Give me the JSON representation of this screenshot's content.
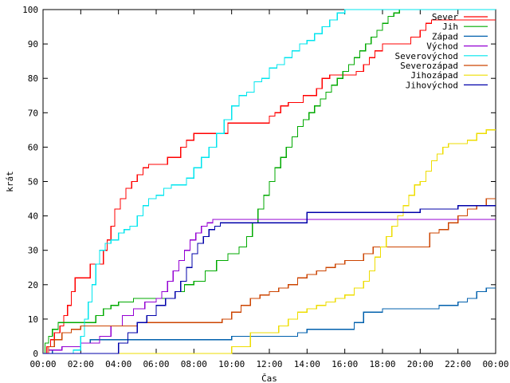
{
  "chart_data": {
    "type": "line",
    "xlabel": "Čas",
    "ylabel": "krát",
    "xlim": [
      0,
      24
    ],
    "ylim": [
      0,
      100
    ],
    "x_ticks": [
      "00:00",
      "02:00",
      "04:00",
      "06:00",
      "08:00",
      "10:00",
      "12:00",
      "14:00",
      "16:00",
      "18:00",
      "20:00",
      "22:00",
      "00:00"
    ],
    "y_ticks": [
      "0",
      "10",
      "20",
      "30",
      "40",
      "50",
      "60",
      "70",
      "80",
      "90",
      "100"
    ],
    "grid": false,
    "legend_position": "top-right",
    "series": [
      {
        "name": "Sever",
        "color": "#ff0000",
        "x": [
          0,
          0.2,
          0.4,
          0.6,
          0.9,
          1.1,
          1.3,
          1.5,
          1.7,
          2.5,
          2.8,
          3.0,
          3.2,
          3.4,
          3.6,
          3.8,
          4.1,
          4.4,
          4.7,
          5.0,
          5.3,
          5.6,
          5.9,
          6.2,
          6.6,
          7.0,
          7.3,
          7.6,
          8.0,
          8.4,
          9.0,
          9.8,
          10.2,
          10.5,
          10.8,
          12.0,
          12.3,
          12.6,
          13.0,
          13.8,
          14.2,
          14.5,
          14.8,
          15.2,
          15.6,
          16.0,
          16.3,
          16.6,
          17.0,
          17.3,
          17.6,
          18.0,
          19.5,
          20.0,
          20.3,
          20.6,
          21.0,
          21.5,
          22.0,
          22.5,
          23.0
        ],
        "y": [
          0,
          2,
          4,
          6,
          8,
          11,
          14,
          18,
          22,
          26,
          26,
          26,
          30,
          33,
          37,
          42,
          45,
          48,
          50,
          52,
          54,
          55,
          55,
          55,
          57,
          57,
          60,
          62,
          64,
          64,
          64,
          67,
          67,
          67,
          67,
          69,
          70,
          72,
          73,
          75,
          75,
          77,
          80,
          81,
          81,
          81,
          81,
          82,
          84,
          86,
          88,
          90,
          92,
          94,
          96,
          97,
          97,
          97,
          97,
          97,
          97
        ]
      },
      {
        "name": "Jih",
        "color": "#00aa00",
        "x": [
          0,
          0.1,
          0.3,
          0.5,
          0.8,
          1.2,
          2.0,
          2.8,
          3.2,
          3.6,
          4.0,
          4.4,
          4.8,
          5.2,
          6.0,
          7.0,
          7.5,
          8.0,
          8.6,
          9.2,
          9.8,
          10.4,
          10.8,
          11.1,
          11.4,
          11.7,
          12.0,
          12.3,
          12.6,
          12.9,
          13.2,
          13.5,
          13.8,
          14.1,
          14.4,
          14.7,
          15.0,
          15.3,
          15.6,
          15.9,
          16.2,
          16.5,
          16.8,
          17.1,
          17.4,
          17.7,
          18.0,
          18.3,
          18.6,
          18.9,
          19.2
        ],
        "y": [
          0,
          3,
          5,
          7,
          9,
          9,
          9,
          11,
          13,
          14,
          15,
          15,
          16,
          16,
          16,
          18,
          20,
          21,
          24,
          27,
          29,
          31,
          34,
          38,
          42,
          46,
          50,
          54,
          57,
          60,
          63,
          66,
          68,
          70,
          72,
          74,
          76,
          78,
          80,
          82,
          84,
          86,
          88,
          90,
          92,
          94,
          96,
          98,
          99,
          100,
          100
        ]
      },
      {
        "name": "Západ",
        "color": "#0060ad",
        "x": [
          0,
          0.5,
          1.0,
          1.5,
          2.0,
          2.5,
          3.0,
          6.0,
          8.0,
          10.0,
          12.0,
          13.5,
          14.0,
          15.0,
          16.0,
          16.5,
          17.0,
          18.0,
          19.0,
          20.0,
          21.0,
          22.0,
          22.5,
          23.0,
          23.5
        ],
        "y": [
          0,
          1,
          2,
          2,
          3,
          4,
          4,
          4,
          4,
          5,
          5,
          6,
          7,
          7,
          7,
          9,
          12,
          13,
          13,
          13,
          14,
          15,
          16,
          18,
          19
        ]
      },
      {
        "name": "Východ",
        "color": "#9400d3",
        "x": [
          0,
          0.3,
          1.0,
          2.0,
          3.0,
          3.6,
          4.2,
          4.8,
          5.4,
          6.0,
          6.3,
          6.6,
          6.9,
          7.2,
          7.5,
          7.8,
          8.1,
          8.4,
          8.7,
          9.0,
          9.5,
          10.0,
          12.0,
          14.0,
          16.0,
          18.0,
          20.0,
          22.0,
          23.5
        ],
        "y": [
          0,
          1,
          2,
          3,
          5,
          8,
          11,
          13,
          15,
          16,
          18,
          21,
          24,
          27,
          30,
          33,
          35,
          37,
          38,
          39,
          39,
          39,
          39,
          39,
          39,
          39,
          39,
          39,
          39
        ]
      },
      {
        "name": "Severovýchod",
        "color": "#00e5ee",
        "x": [
          0,
          0.5,
          1.0,
          1.6,
          2.0,
          2.2,
          2.4,
          2.6,
          2.8,
          3.0,
          3.3,
          3.6,
          4.0,
          4.3,
          4.6,
          5.0,
          5.3,
          5.6,
          6.0,
          6.4,
          6.8,
          7.2,
          7.6,
          8.0,
          8.4,
          8.8,
          9.2,
          9.6,
          10.0,
          10.4,
          10.8,
          11.2,
          11.6,
          12.0,
          12.4,
          12.8,
          13.2,
          13.6,
          14.0,
          14.4,
          14.8,
          15.2,
          15.6,
          16.0
        ],
        "y": [
          0,
          0,
          0,
          1,
          5,
          10,
          15,
          20,
          26,
          30,
          32,
          33,
          35,
          36,
          37,
          40,
          43,
          45,
          46,
          48,
          49,
          49,
          51,
          54,
          57,
          60,
          64,
          68,
          72,
          75,
          76,
          79,
          80,
          83,
          84,
          86,
          88,
          90,
          91,
          93,
          95,
          97,
          99,
          100
        ]
      },
      {
        "name": "Severozápad",
        "color": "#cc4400",
        "x": [
          0,
          0.3,
          0.6,
          1.0,
          1.5,
          2.0,
          3.0,
          5.0,
          7.0,
          9.0,
          9.5,
          10.0,
          10.5,
          11.0,
          11.5,
          12.0,
          12.5,
          13.0,
          13.5,
          14.0,
          14.5,
          15.0,
          15.5,
          16.0,
          16.5,
          17.0,
          17.5,
          18.0,
          18.5,
          19.0,
          19.5,
          20.0,
          20.5,
          21.0,
          21.5,
          22.0,
          22.5,
          23.0,
          23.5
        ],
        "y": [
          0,
          2,
          4,
          6,
          7,
          8,
          8,
          9,
          9,
          9,
          10,
          12,
          14,
          16,
          17,
          18,
          19,
          20,
          22,
          23,
          24,
          25,
          26,
          27,
          27,
          29,
          31,
          31,
          31,
          31,
          31,
          31,
          35,
          36,
          38,
          40,
          42,
          43,
          45
        ]
      },
      {
        "name": "Jihozápad",
        "color": "#eedd00",
        "x": [
          0,
          10.0,
          11.0,
          12.0,
          12.5,
          13.0,
          13.5,
          14.0,
          14.5,
          15.0,
          15.5,
          16.0,
          16.5,
          17.0,
          17.3,
          17.6,
          17.9,
          18.2,
          18.5,
          18.8,
          19.1,
          19.4,
          19.7,
          20.0,
          20.3,
          20.6,
          20.9,
          21.2,
          21.5,
          22.0,
          22.5,
          23.0,
          23.5
        ],
        "y": [
          0,
          2,
          6,
          6,
          8,
          10,
          12,
          13,
          14,
          15,
          16,
          17,
          19,
          21,
          24,
          28,
          31,
          34,
          37,
          40,
          43,
          46,
          49,
          50,
          53,
          56,
          58,
          60,
          61,
          61,
          62,
          64,
          65
        ]
      },
      {
        "name": "Jihovýchod",
        "color": "#0000aa",
        "x": [
          0,
          3.5,
          4.0,
          4.5,
          5.0,
          5.5,
          6.0,
          6.5,
          7.0,
          7.3,
          7.6,
          7.9,
          8.2,
          8.5,
          8.8,
          9.1,
          9.4,
          10.0,
          12.0,
          14.0,
          16.0,
          18.0,
          20.0,
          22.0,
          23.5
        ],
        "y": [
          0,
          0,
          3,
          6,
          9,
          11,
          14,
          16,
          18,
          21,
          25,
          29,
          32,
          34,
          36,
          37,
          38,
          38,
          38,
          41,
          41,
          41,
          42,
          43,
          43
        ]
      }
    ]
  }
}
